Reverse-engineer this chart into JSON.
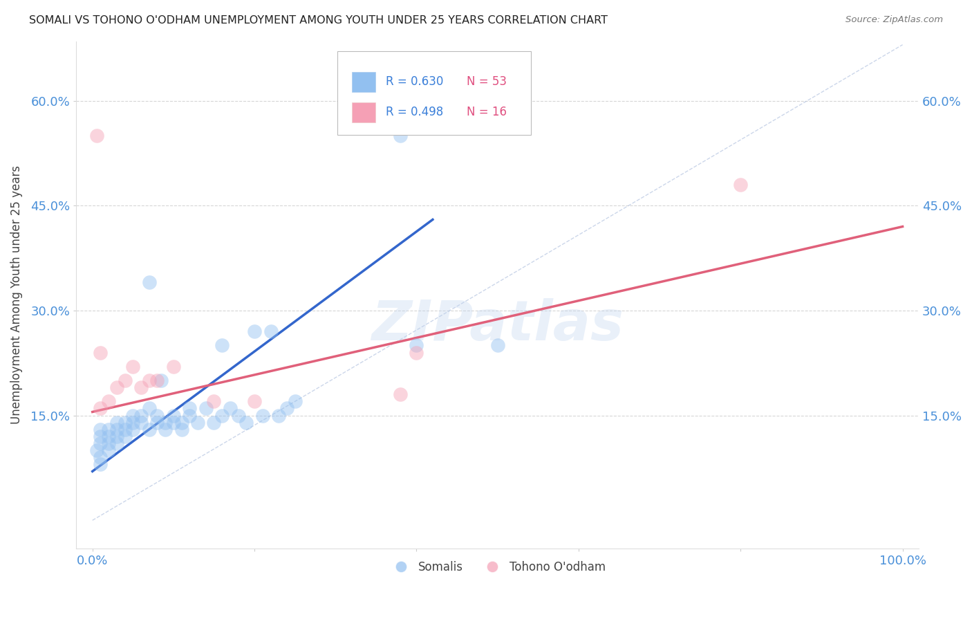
{
  "title": "SOMALI VS TOHONO O'ODHAM UNEMPLOYMENT AMONG YOUTH UNDER 25 YEARS CORRELATION CHART",
  "source": "Source: ZipAtlas.com",
  "ylabel_label": "Unemployment Among Youth under 25 years",
  "y_tick_values": [
    0.15,
    0.3,
    0.45,
    0.6
  ],
  "xlim": [
    -0.02,
    1.02
  ],
  "ylim": [
    -0.04,
    0.685
  ],
  "somali_R": 0.63,
  "somali_N": 53,
  "tohono_R": 0.498,
  "tohono_N": 16,
  "somali_color": "#92c0f0",
  "tohono_color": "#f5a0b5",
  "somali_line_color": "#3366cc",
  "tohono_line_color": "#e0607a",
  "diagonal_color": "#aabcdc",
  "legend_label_somali": "Somalis",
  "legend_label_tohono": "Tohono O'odham",
  "somali_scatter_x": [
    0.005,
    0.01,
    0.01,
    0.01,
    0.01,
    0.01,
    0.02,
    0.02,
    0.02,
    0.02,
    0.03,
    0.03,
    0.03,
    0.03,
    0.04,
    0.04,
    0.04,
    0.05,
    0.05,
    0.05,
    0.06,
    0.06,
    0.07,
    0.07,
    0.08,
    0.08,
    0.09,
    0.09,
    0.1,
    0.1,
    0.11,
    0.11,
    0.12,
    0.12,
    0.13,
    0.14,
    0.15,
    0.16,
    0.17,
    0.18,
    0.19,
    0.2,
    0.21,
    0.22,
    0.23,
    0.24,
    0.25,
    0.07,
    0.38,
    0.5,
    0.085,
    0.16,
    0.4
  ],
  "somali_scatter_y": [
    0.1,
    0.11,
    0.12,
    0.13,
    0.08,
    0.09,
    0.12,
    0.13,
    0.1,
    0.11,
    0.13,
    0.12,
    0.14,
    0.11,
    0.14,
    0.13,
    0.12,
    0.15,
    0.14,
    0.13,
    0.15,
    0.14,
    0.16,
    0.13,
    0.14,
    0.15,
    0.13,
    0.14,
    0.15,
    0.14,
    0.14,
    0.13,
    0.16,
    0.15,
    0.14,
    0.16,
    0.14,
    0.15,
    0.16,
    0.15,
    0.14,
    0.27,
    0.15,
    0.27,
    0.15,
    0.16,
    0.17,
    0.34,
    0.55,
    0.25,
    0.2,
    0.25,
    0.25
  ],
  "tohono_scatter_x": [
    0.005,
    0.01,
    0.02,
    0.04,
    0.05,
    0.06,
    0.07,
    0.08,
    0.1,
    0.15,
    0.2,
    0.38,
    0.4,
    0.8,
    0.01,
    0.03
  ],
  "tohono_scatter_y": [
    0.55,
    0.24,
    0.17,
    0.2,
    0.22,
    0.19,
    0.2,
    0.2,
    0.22,
    0.17,
    0.17,
    0.18,
    0.24,
    0.48,
    0.16,
    0.19
  ],
  "somali_line_x": [
    0.0,
    0.42
  ],
  "somali_line_y": [
    0.07,
    0.43
  ],
  "tohono_line_x": [
    0.0,
    1.0
  ],
  "tohono_line_y": [
    0.155,
    0.42
  ],
  "diagonal_line_x": [
    0.0,
    1.0
  ],
  "diagonal_line_y": [
    0.0,
    0.68
  ],
  "background_color": "#ffffff",
  "grid_color": "#cccccc",
  "title_color": "#222222",
  "axis_label_color": "#444444",
  "tick_color_x": "#4a90d9",
  "tick_color_y": "#4a90d9",
  "legend_r_color": "#3a7fd9",
  "legend_n_color": "#e05080",
  "watermark": "ZIPatlas",
  "watermark_color": "#c0d4ef",
  "watermark_alpha": 0.35
}
